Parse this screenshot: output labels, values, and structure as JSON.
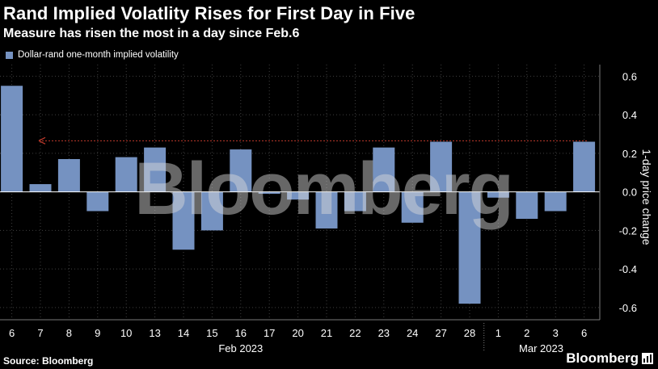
{
  "title": "Rand Implied Volatlity Rises for First Day in Five",
  "subtitle": "Measure has risen the most in a day since Feb.6",
  "legend_label": "Dollar-rand one-month implied volatility",
  "source": "Source: Bloomberg",
  "logo_text": "Bloomberg",
  "watermark": "Bloomberg",
  "colors": {
    "bar": "#7592c1",
    "grid": "#3f3f3f",
    "reference_line": "#c0392b",
    "background": "#000000",
    "text": "#ffffff"
  },
  "chart_data": {
    "type": "bar",
    "title": "Rand Implied Volatlity Rises for First Day in Five",
    "subtitle": "Measure has risen the most in a day since Feb.6",
    "ylabel": "1-day price change",
    "categories": [
      "6",
      "7",
      "8",
      "9",
      "10",
      "13",
      "14",
      "15",
      "16",
      "17",
      "20",
      "21",
      "22",
      "23",
      "24",
      "27",
      "28",
      "1",
      "2",
      "3",
      "6"
    ],
    "month_labels": [
      {
        "label": "Feb 2023",
        "start_index": 0,
        "end_index": 16
      },
      {
        "label": "Mar 2023",
        "start_index": 17,
        "end_index": 20
      }
    ],
    "series": [
      {
        "name": "Dollar-rand one-month implied volatility",
        "values": [
          0.55,
          0.04,
          0.17,
          -0.1,
          0.18,
          0.23,
          -0.3,
          -0.2,
          0.22,
          -0.01,
          -0.04,
          -0.19,
          -0.1,
          0.23,
          -0.16,
          0.26,
          -0.58,
          -0.03,
          -0.14,
          -0.1,
          0.26
        ]
      }
    ],
    "ylim": [
      -0.65,
      0.65
    ],
    "yticks": [
      0.6,
      0.4,
      0.2,
      0.0,
      -0.2,
      -0.4,
      -0.6
    ],
    "ytick_labels": [
      "0.6",
      "0.4",
      "0.2",
      "0.0",
      "-0.2",
      "-0.4",
      "-0.6"
    ],
    "reference_line_value": 0.265,
    "grid": true,
    "y_axis_position": "right",
    "legend_position": "top-left"
  }
}
